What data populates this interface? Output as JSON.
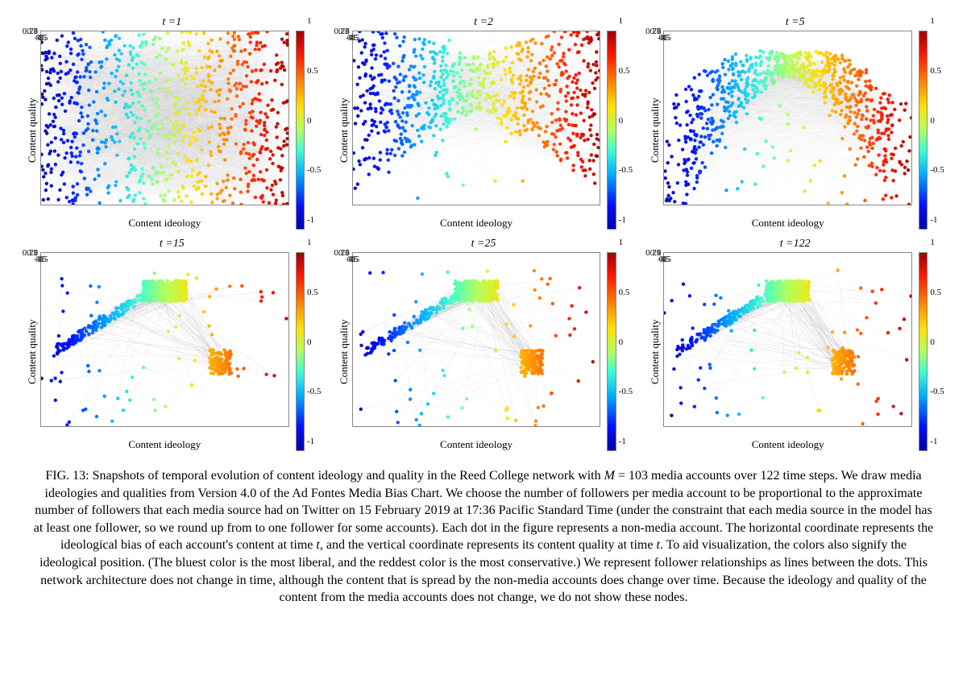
{
  "figure_number": "FIG. 13:",
  "caption_parts": {
    "p1": "Snapshots of temporal evolution of content ideology and quality in the Reed College network with ",
    "M_label": "M",
    "p2": " = 103 media accounts over 122 time steps. We draw media ideologies and qualities from Version 4.0 of the Ad Fontes Media Bias Chart. We choose the number of followers per media account to be proportional to the approximate number of followers that each media source had on Twitter on 15 February 2019 at 17:36 Pacific Standard Time (under the constraint that each media source in the model has at least one follower, so we round up from to one follower for some accounts). Each dot in the figure represents a non-media account. The horizontal coordinate represents the ideological bias of each account's content at time ",
    "t1": "t",
    "p3": ", and the vertical coordinate represents its content quality at time ",
    "t2": "t",
    "p4": ". To aid visualization, the colors also signify the ideological position. (The bluest color is the most liberal, and the reddest color is the most conservative.) We represent follower relationships as lines between the dots. This network architecture does not change in time, although the content that is spread by the non-media accounts does change over time. Because the ideology and quality of the content from the media accounts does not change, we do not show these nodes."
  },
  "axis": {
    "xlabel": "Content ideology",
    "ylabel": "Content quality",
    "xlim": [
      -1,
      1
    ],
    "ylim": [
      0,
      1
    ],
    "xticks": [
      -1,
      -0.5,
      0,
      0.5,
      1
    ],
    "yticks": [
      0,
      0.25,
      0.5,
      0.75,
      1
    ],
    "tick_fontsize": 11,
    "label_fontsize": 13,
    "grid": false,
    "border_color": "#888888",
    "background_color": "#ffffff"
  },
  "colorbar": {
    "range": [
      -1,
      1
    ],
    "ticks": [
      -1,
      -0.5,
      0,
      0.5,
      1
    ],
    "stops": [
      {
        "t": 0.0,
        "color": "#0000a8"
      },
      {
        "t": 0.12,
        "color": "#0010ff"
      },
      {
        "t": 0.28,
        "color": "#00b0ff"
      },
      {
        "t": 0.4,
        "color": "#40ffd0"
      },
      {
        "t": 0.5,
        "color": "#b0ff60"
      },
      {
        "t": 0.62,
        "color": "#ffe000"
      },
      {
        "t": 0.75,
        "color": "#ff8000"
      },
      {
        "t": 0.88,
        "color": "#ff1800"
      },
      {
        "t": 1.0,
        "color": "#a00000"
      }
    ]
  },
  "scatter_style": {
    "marker_radius": 2.2,
    "marker_opacity": 0.95,
    "edge_color": "#000000",
    "edge_opacity_dense": 0.015,
    "edge_opacity_sparse": 0.1,
    "edge_width": 0.4,
    "n_points": 800,
    "n_edges_dense": 4000,
    "n_edges_sparse": 300
  },
  "panels": [
    {
      "t": 1,
      "title_prefix": "t =",
      "shape": "uniform"
    },
    {
      "t": 2,
      "title_prefix": "t =",
      "shape": "bowtie"
    },
    {
      "t": 5,
      "title_prefix": "t =",
      "shape": "arch"
    },
    {
      "t": 15,
      "title_prefix": "t =",
      "shape": "vee"
    },
    {
      "t": 25,
      "title_prefix": "t =",
      "shape": "vee"
    },
    {
      "t": 122,
      "title_prefix": "t =",
      "shape": "vee"
    }
  ]
}
